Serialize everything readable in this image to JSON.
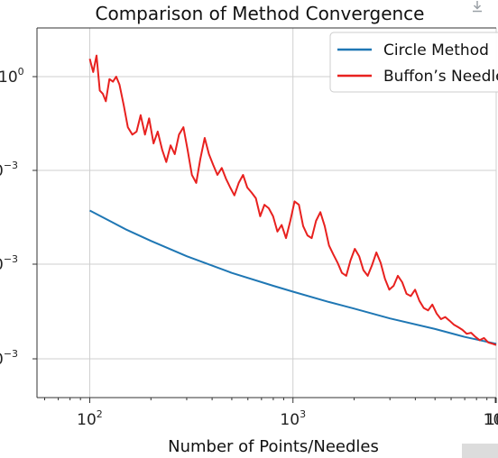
{
  "chart_data": {
    "type": "line",
    "title": "Comparison of Method Convergence",
    "xlabel": "Number of Points/Needles",
    "ylabel": "",
    "xscale": "log",
    "yscale": "log",
    "xlim": [
      55,
      10000
    ],
    "x_ticks": [
      {
        "value": 100,
        "base": "10",
        "exp": "2"
      },
      {
        "value": 1000,
        "base": "10",
        "exp": "3"
      },
      {
        "value": 10000,
        "base": "10",
        "exp": "4"
      },
      {
        "value": 100000,
        "base": "10",
        "exp": ""
      }
    ],
    "y_ticks": [
      {
        "base": "10",
        "exp": "0"
      },
      {
        "base": "0",
        "exp": "−3"
      },
      {
        "base": "0",
        "exp": "−3"
      },
      {
        "base": "0",
        "exp": "−3"
      }
    ],
    "grid": true,
    "legend_position": "top-right",
    "series": [
      {
        "name": "Circle Method",
        "color": "#1f77b4",
        "x": [
          100,
          150,
          200,
          300,
          500,
          800,
          1000,
          1500,
          2000,
          3000,
          5000,
          7000,
          10000
        ],
        "y": [
          0.062,
          0.042,
          0.033,
          0.024,
          0.017,
          0.013,
          0.0115,
          0.0093,
          0.0081,
          0.0066,
          0.0053,
          0.0045,
          0.0039
        ]
      },
      {
        "name": "Buffon’s Needle",
        "color": "#e8211f",
        "x": [
          100,
          104,
          108,
          112,
          116,
          120,
          125,
          130,
          135,
          140,
          147,
          154,
          162,
          170,
          178,
          187,
          196,
          206,
          216,
          227,
          238,
          250,
          262,
          275,
          289,
          303,
          318,
          334,
          350,
          368,
          386,
          405,
          425,
          446,
          468,
          491,
          515,
          541,
          568,
          596,
          626,
          657,
          690,
          724,
          760,
          798,
          838,
          880,
          924,
          970,
          1018,
          1069,
          1122,
          1178,
          1237,
          1299,
          1364,
          1432,
          1504,
          1579,
          1658,
          1741,
          1828,
          1919,
          2015,
          2116,
          2222,
          2333,
          2450,
          2572,
          2701,
          2836,
          2978,
          3127,
          3283,
          3447,
          3619,
          3800,
          3990,
          4190,
          4400,
          4620,
          4851,
          5093,
          5348,
          5615,
          5896,
          6191,
          6500,
          6825,
          7167,
          7525,
          7901,
          8296,
          8711,
          9147,
          9604,
          10000
        ],
        "y": [
          1.45,
          1.1,
          1.55,
          0.75,
          0.7,
          0.6,
          0.95,
          0.9,
          1.0,
          0.85,
          0.55,
          0.35,
          0.3,
          0.32,
          0.45,
          0.3,
          0.42,
          0.25,
          0.32,
          0.22,
          0.17,
          0.24,
          0.2,
          0.3,
          0.35,
          0.22,
          0.13,
          0.11,
          0.18,
          0.28,
          0.2,
          0.16,
          0.13,
          0.15,
          0.12,
          0.1,
          0.085,
          0.11,
          0.13,
          0.1,
          0.09,
          0.08,
          0.055,
          0.07,
          0.065,
          0.055,
          0.04,
          0.046,
          0.035,
          0.05,
          0.075,
          0.07,
          0.045,
          0.037,
          0.035,
          0.05,
          0.06,
          0.045,
          0.03,
          0.025,
          0.021,
          0.017,
          0.016,
          0.022,
          0.028,
          0.024,
          0.018,
          0.016,
          0.02,
          0.026,
          0.021,
          0.015,
          0.012,
          0.013,
          0.016,
          0.014,
          0.011,
          0.0105,
          0.012,
          0.0095,
          0.0082,
          0.0078,
          0.0088,
          0.0073,
          0.0065,
          0.0068,
          0.0063,
          0.0058,
          0.0055,
          0.0052,
          0.0048,
          0.0049,
          0.0045,
          0.0042,
          0.0044,
          0.004,
          0.0039,
          0.0038
        ]
      }
    ]
  }
}
